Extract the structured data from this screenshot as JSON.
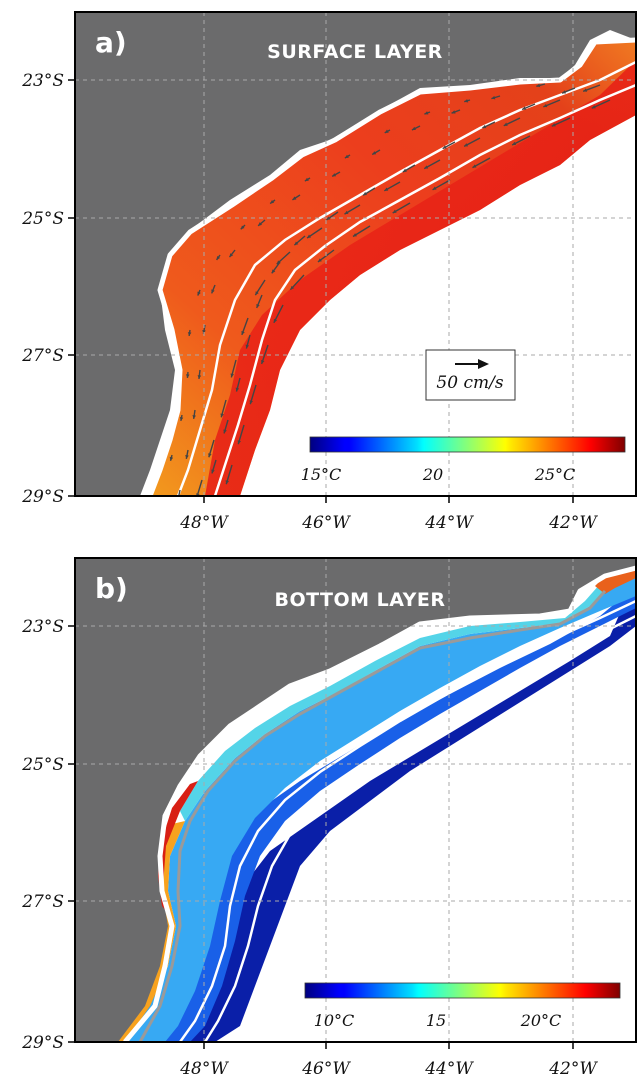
{
  "panels": [
    {
      "letter": "a)",
      "title": "SURFACE LAYER",
      "colorbar": {
        "colormap": "jet",
        "range_degC": [
          14,
          28
        ],
        "tick_labels": [
          "15°C",
          "20",
          "25°C"
        ],
        "tick_values": [
          15,
          20,
          25
        ]
      },
      "velocity_scale": {
        "label": "50 cm/s",
        "speed_cm_s": 50
      },
      "field": "sea surface temperature with current vectors",
      "temperature_degC": {
        "shelf": 27,
        "outer_shelf": 26.5,
        "slope": 27.5
      }
    },
    {
      "letter": "b)",
      "title": "BOTTOM LAYER",
      "colorbar": {
        "colormap": "jet",
        "range_degC": [
          8,
          23
        ],
        "tick_labels": [
          "10°C",
          "15",
          "20°C"
        ],
        "tick_values": [
          10,
          15,
          20
        ]
      },
      "field": "bottom temperature",
      "temperature_degC": {
        "coast": 21,
        "inner_shelf": 17,
        "mid_shelf": 14,
        "outer_shelf": 12,
        "slope": 9
      }
    }
  ],
  "axes": {
    "lat_labels": [
      "23°S",
      "25°S",
      "27°S",
      "29°S"
    ],
    "lon_labels": [
      "48°W",
      "46°W",
      "44°W",
      "42°W"
    ],
    "lat_range": [
      -29,
      -22
    ],
    "lon_range": [
      -50,
      -41
    ],
    "grid": "dashed"
  },
  "colors": {
    "land": "#6b6b6c",
    "frame": "#000000",
    "isobath": "#ffffff",
    "bottom_contour": "#9a9a9a",
    "vector": "#444444"
  }
}
